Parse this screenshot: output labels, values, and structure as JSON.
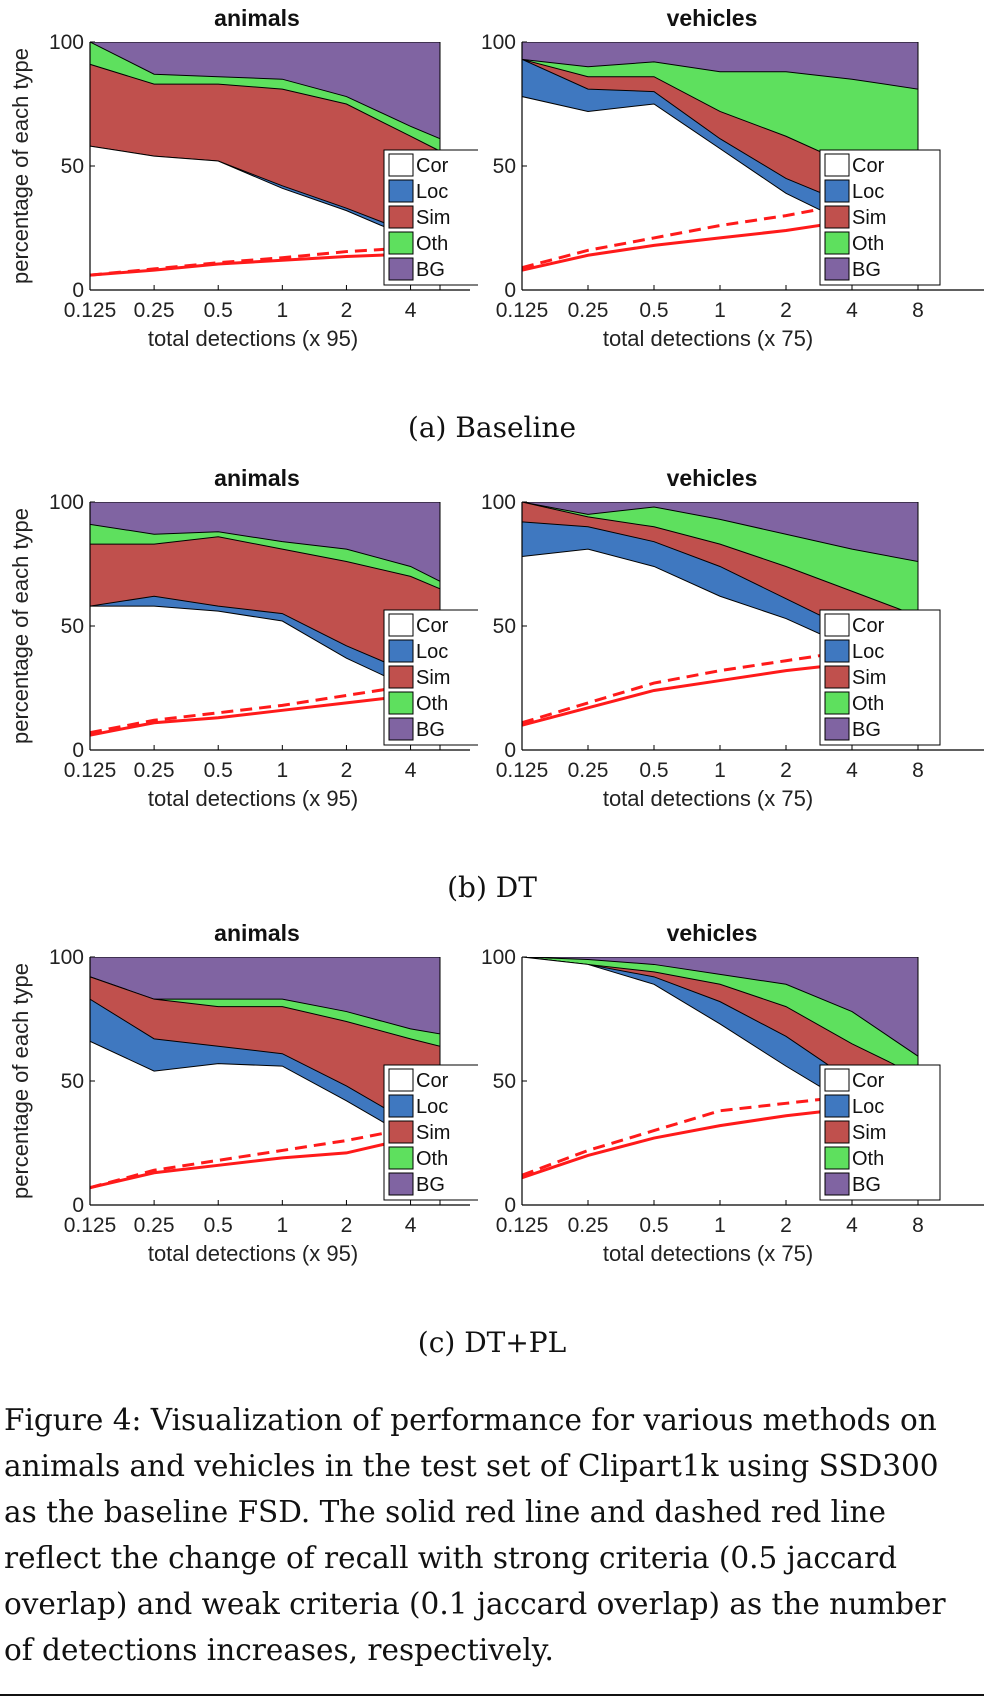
{
  "chart_data": [
    {
      "type": "area",
      "group": "a",
      "title": "animals",
      "xlabel": "total detections (x 95)",
      "ylabel": "percentage of each type",
      "x_ticks": [
        "0.125",
        "0.25",
        "0.5",
        "1",
        "2",
        "4"
      ],
      "y_ticks": [
        "0",
        "50",
        "100"
      ],
      "ylim": [
        0,
        100
      ],
      "x_min": 0.125,
      "x_max": 5.5,
      "x": [
        0.125,
        0.25,
        0.5,
        1,
        2,
        4,
        5.5
      ],
      "layers": [
        {
          "name": "Cor",
          "color": "#ffffff",
          "top": [
            58,
            54,
            52,
            41,
            32,
            21,
            17
          ]
        },
        {
          "name": "Loc",
          "color": "#3f78c0",
          "top": [
            58,
            54,
            52,
            42,
            33,
            23,
            19
          ]
        },
        {
          "name": "Sim",
          "color": "#c0504d",
          "top": [
            91,
            83,
            83,
            81,
            75,
            62,
            56
          ]
        },
        {
          "name": "Oth",
          "color": "#5ee05e",
          "top": [
            100,
            87,
            86,
            85,
            78,
            66,
            61
          ]
        },
        {
          "name": "BG",
          "color": "#8064a2",
          "top": [
            100,
            100,
            100,
            100,
            100,
            100,
            100
          ]
        }
      ],
      "recall_strong": [
        6,
        8,
        10.5,
        12,
        13.5,
        14.5,
        15
      ],
      "recall_weak": [
        6,
        8.5,
        11,
        13,
        15.5,
        17,
        18
      ],
      "legend_position": "right-center"
    },
    {
      "type": "area",
      "group": "a",
      "title": "vehicles",
      "xlabel": "total detections (x 75)",
      "ylabel": "percentage of each type",
      "x_ticks": [
        "0.125",
        "0.25",
        "0.5",
        "1",
        "2",
        "4",
        "8"
      ],
      "y_ticks": [
        "0",
        "50",
        "100"
      ],
      "ylim": [
        0,
        100
      ],
      "x_min": 0.125,
      "x_max": 8,
      "x": [
        0.125,
        0.25,
        0.5,
        1,
        2,
        4,
        8
      ],
      "layers": [
        {
          "name": "Cor",
          "color": "#ffffff",
          "top": [
            78,
            72,
            75,
            57,
            39,
            26,
            20
          ]
        },
        {
          "name": "Loc",
          "color": "#3f78c0",
          "top": [
            93,
            81,
            80,
            61,
            45,
            34,
            26
          ]
        },
        {
          "name": "Sim",
          "color": "#c0504d",
          "top": [
            93,
            86,
            86,
            72,
            62,
            50,
            46
          ]
        },
        {
          "name": "Oth",
          "color": "#5ee05e",
          "top": [
            93,
            90,
            92,
            88,
            88,
            85,
            81
          ]
        },
        {
          "name": "BG",
          "color": "#8064a2",
          "top": [
            100,
            100,
            100,
            100,
            100,
            100,
            100
          ]
        }
      ],
      "recall_strong": [
        8,
        14,
        18,
        21,
        24,
        28,
        30
      ],
      "recall_weak": [
        9,
        16,
        21,
        26,
        30,
        35,
        37
      ],
      "legend_position": "right-center"
    },
    {
      "type": "area",
      "group": "b",
      "title": "animals",
      "xlabel": "total detections (x 95)",
      "ylabel": "percentage of each type",
      "x_ticks": [
        "0.125",
        "0.25",
        "0.5",
        "1",
        "2",
        "4"
      ],
      "y_ticks": [
        "0",
        "50",
        "100"
      ],
      "ylim": [
        0,
        100
      ],
      "x_min": 0.125,
      "x_max": 5.5,
      "x": [
        0.125,
        0.25,
        0.5,
        1,
        2,
        4,
        5.5
      ],
      "layers": [
        {
          "name": "Cor",
          "color": "#ffffff",
          "top": [
            58,
            58,
            56,
            52,
            37,
            25,
            21
          ]
        },
        {
          "name": "Loc",
          "color": "#3f78c0",
          "top": [
            58,
            62,
            58,
            55,
            42,
            31,
            27
          ]
        },
        {
          "name": "Sim",
          "color": "#c0504d",
          "top": [
            83,
            83,
            86,
            81,
            76,
            70,
            65
          ]
        },
        {
          "name": "Oth",
          "color": "#5ee05e",
          "top": [
            91,
            87,
            88,
            84,
            81,
            74,
            68
          ]
        },
        {
          "name": "BG",
          "color": "#8064a2",
          "top": [
            100,
            100,
            100,
            100,
            100,
            100,
            100
          ]
        }
      ],
      "recall_strong": [
        6,
        11,
        13,
        16,
        19,
        22,
        23
      ],
      "recall_weak": [
        7,
        12,
        15,
        18,
        22,
        26,
        27
      ],
      "legend_position": "right-center"
    },
    {
      "type": "area",
      "group": "b",
      "title": "vehicles",
      "xlabel": "total detections (x 75)",
      "ylabel": "percentage of each type",
      "x_ticks": [
        "0.125",
        "0.25",
        "0.5",
        "1",
        "2",
        "4",
        "8"
      ],
      "y_ticks": [
        "0",
        "50",
        "100"
      ],
      "ylim": [
        0,
        100
      ],
      "x_min": 0.125,
      "x_max": 8,
      "x": [
        0.125,
        0.25,
        0.5,
        1,
        2,
        4,
        8
      ],
      "layers": [
        {
          "name": "Cor",
          "color": "#ffffff",
          "top": [
            78,
            81,
            74,
            62,
            53,
            41,
            25
          ]
        },
        {
          "name": "Loc",
          "color": "#3f78c0",
          "top": [
            92,
            90,
            84,
            74,
            61,
            48,
            36
          ]
        },
        {
          "name": "Sim",
          "color": "#c0504d",
          "top": [
            100,
            94,
            90,
            83,
            74,
            64,
            54
          ]
        },
        {
          "name": "Oth",
          "color": "#5ee05e",
          "top": [
            100,
            95,
            98,
            93,
            87,
            81,
            76
          ]
        },
        {
          "name": "BG",
          "color": "#8064a2",
          "top": [
            100,
            100,
            100,
            100,
            100,
            100,
            100
          ]
        }
      ],
      "recall_strong": [
        10,
        17,
        24,
        28,
        32,
        35,
        36
      ],
      "recall_weak": [
        11,
        19,
        27,
        32,
        36,
        40,
        40
      ],
      "legend_position": "right-center"
    },
    {
      "type": "area",
      "group": "c",
      "title": "animals",
      "xlabel": "total detections (x 95)",
      "ylabel": "percentage of each type",
      "x_ticks": [
        "0.125",
        "0.25",
        "0.5",
        "1",
        "2",
        "4"
      ],
      "y_ticks": [
        "0",
        "50",
        "100"
      ],
      "ylim": [
        0,
        100
      ],
      "x_min": 0.125,
      "x_max": 5.5,
      "x": [
        0.125,
        0.25,
        0.5,
        1,
        2,
        4,
        5.5
      ],
      "layers": [
        {
          "name": "Cor",
          "color": "#ffffff",
          "top": [
            66,
            54,
            57,
            56,
            42,
            27,
            22
          ]
        },
        {
          "name": "Loc",
          "color": "#3f78c0",
          "top": [
            83,
            67,
            64,
            61,
            48,
            33,
            28
          ]
        },
        {
          "name": "Sim",
          "color": "#c0504d",
          "top": [
            92,
            83,
            80,
            80,
            74,
            67,
            64
          ]
        },
        {
          "name": "Oth",
          "color": "#5ee05e",
          "top": [
            92,
            83,
            83,
            83,
            78,
            71,
            69
          ]
        },
        {
          "name": "BG",
          "color": "#8064a2",
          "top": [
            100,
            100,
            100,
            100,
            100,
            100,
            100
          ]
        }
      ],
      "recall_strong": [
        7,
        13,
        16,
        19,
        21,
        27,
        29
      ],
      "recall_weak": [
        7,
        14,
        18,
        22,
        26,
        31,
        33
      ],
      "legend_position": "right-center"
    },
    {
      "type": "area",
      "group": "c",
      "title": "vehicles",
      "xlabel": "total detections (x 75)",
      "ylabel": "percentage of each type",
      "x_ticks": [
        "0.125",
        "0.25",
        "0.5",
        "1",
        "2",
        "4",
        "8"
      ],
      "y_ticks": [
        "0",
        "50",
        "100"
      ],
      "ylim": [
        0,
        100
      ],
      "x_min": 0.125,
      "x_max": 8,
      "x": [
        0.125,
        0.25,
        0.5,
        1,
        2,
        4,
        8
      ],
      "layers": [
        {
          "name": "Cor",
          "color": "#ffffff",
          "top": [
            100,
            97,
            89,
            73,
            56,
            40,
            28
          ]
        },
        {
          "name": "Loc",
          "color": "#3f78c0",
          "top": [
            100,
            97,
            92,
            82,
            68,
            50,
            38
          ]
        },
        {
          "name": "Sim",
          "color": "#c0504d",
          "top": [
            100,
            97,
            94,
            89,
            80,
            65,
            52
          ]
        },
        {
          "name": "Oth",
          "color": "#5ee05e",
          "top": [
            100,
            99,
            97,
            93,
            89,
            78,
            60
          ]
        },
        {
          "name": "BG",
          "color": "#8064a2",
          "top": [
            100,
            100,
            100,
            100,
            100,
            100,
            100
          ]
        }
      ],
      "recall_strong": [
        11,
        20,
        27,
        32,
        36,
        39,
        39
      ],
      "recall_weak": [
        12,
        22,
        30,
        38,
        41,
        44,
        45
      ],
      "legend_position": "right-center"
    }
  ],
  "captions": {
    "a": "(a) Baseline",
    "b": "(b) DT",
    "c": "(c) DT+PL"
  },
  "figure_caption": "Figure 4: Visualization of performance for various methods on animals and vehicles in the test set of Clipart1k using SSD300 as the baseline FSD. The solid red line and dashed red line reflect the change of recall with strong criteria (0.5 jaccard overlap) and weak criteria (0.1 jaccard overlap) as the number of detections increases, respectively."
}
